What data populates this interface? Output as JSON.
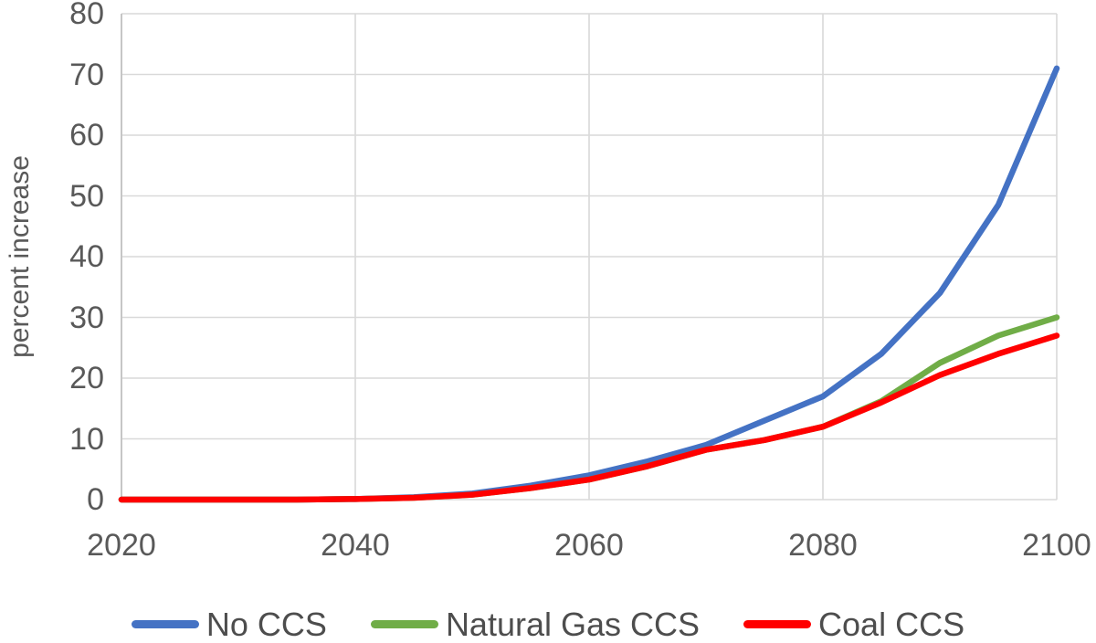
{
  "chart_data": {
    "type": "line",
    "title": "",
    "xlabel": "",
    "ylabel": "percent increase",
    "x": [
      2020,
      2025,
      2030,
      2035,
      2040,
      2045,
      2050,
      2055,
      2060,
      2065,
      2070,
      2075,
      2080,
      2085,
      2090,
      2095,
      2100
    ],
    "series": [
      {
        "name": "No CCS",
        "color": "#4472C4",
        "values": [
          0,
          0,
          0,
          0,
          0.1,
          0.4,
          1.0,
          2.3,
          4.0,
          6.3,
          9.0,
          13.0,
          17.0,
          24.0,
          34.0,
          48.5,
          71.0
        ]
      },
      {
        "name": "Natural Gas CCS",
        "color": "#70AD47",
        "values": [
          0,
          0,
          0,
          0,
          0.1,
          0.3,
          0.8,
          1.9,
          3.3,
          5.5,
          8.2,
          9.8,
          12.0,
          16.2,
          22.5,
          27.0,
          30.0
        ]
      },
      {
        "name": "Coal CCS",
        "color": "#FF0000",
        "values": [
          0,
          0,
          0,
          0,
          0.1,
          0.3,
          0.8,
          1.9,
          3.3,
          5.5,
          8.2,
          9.8,
          12.0,
          16.0,
          20.5,
          24.0,
          27.0
        ]
      }
    ],
    "xticks": [
      "2020",
      "2040",
      "2060",
      "2080",
      "2100"
    ],
    "yticks": [
      "0",
      "10",
      "20",
      "30",
      "40",
      "50",
      "60",
      "70",
      "80"
    ],
    "xlim": [
      2020,
      2100
    ],
    "ylim": [
      0,
      80
    ],
    "grid": true,
    "legend_position": "bottom",
    "grid_color": "#D9D9D9",
    "axis_color": "#C6C6C6",
    "tick_text_color": "#595959",
    "legend_text_color": "#4D4D4D"
  }
}
